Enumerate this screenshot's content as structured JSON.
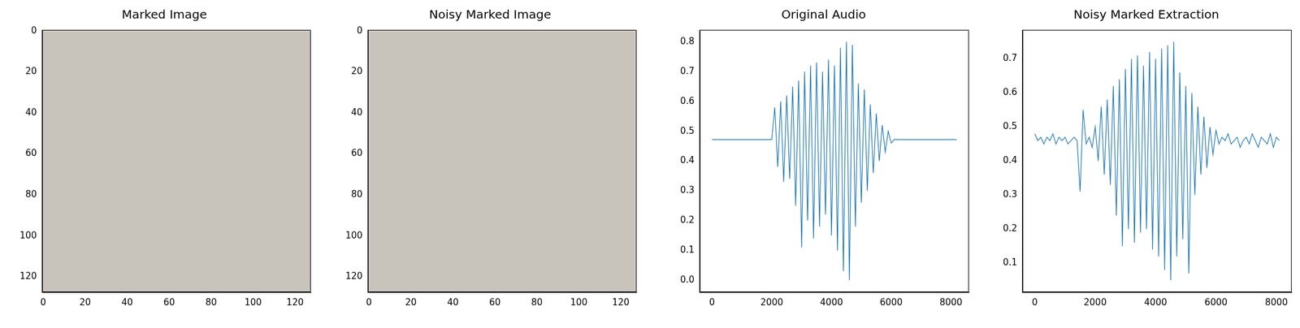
{
  "chart_data": [
    {
      "type": "image",
      "title": "Marked Image",
      "xlim": [
        -0.5,
        127.5
      ],
      "ylim": [
        127.5,
        -0.5
      ],
      "xticks": [
        0,
        20,
        40,
        60,
        80,
        100,
        120
      ],
      "yticks": [
        0,
        20,
        40,
        60,
        80,
        100,
        120
      ],
      "grid": false
    },
    {
      "type": "image",
      "title": "Noisy Marked Image",
      "xlim": [
        -0.5,
        127.5
      ],
      "ylim": [
        127.5,
        -0.5
      ],
      "xticks": [
        0,
        20,
        40,
        60,
        80,
        100,
        120
      ],
      "yticks": [
        0,
        20,
        40,
        60,
        80,
        100,
        120
      ],
      "grid": false
    },
    {
      "type": "line",
      "title": "Original Audio",
      "color": "#1f77b4",
      "grid": false,
      "x": [
        0,
        1000,
        2000,
        2100,
        2200,
        2300,
        2400,
        2500,
        2600,
        2700,
        2800,
        2900,
        3000,
        3100,
        3200,
        3300,
        3400,
        3500,
        3600,
        3700,
        3800,
        3900,
        4000,
        4100,
        4200,
        4300,
        4400,
        4500,
        4600,
        4700,
        4800,
        4900,
        5000,
        5100,
        5200,
        5300,
        5400,
        5500,
        5600,
        5700,
        5800,
        5900,
        6000,
        6100,
        7000,
        8191
      ],
      "values": [
        0.472,
        0.472,
        0.472,
        0.58,
        0.38,
        0.6,
        0.33,
        0.62,
        0.34,
        0.65,
        0.25,
        0.67,
        0.11,
        0.7,
        0.2,
        0.72,
        0.14,
        0.73,
        0.18,
        0.7,
        0.22,
        0.74,
        0.15,
        0.72,
        0.1,
        0.78,
        0.03,
        0.8,
        0.0,
        0.79,
        0.18,
        0.66,
        0.26,
        0.64,
        0.3,
        0.59,
        0.36,
        0.56,
        0.4,
        0.52,
        0.43,
        0.5,
        0.46,
        0.472,
        0.472,
        0.472
      ],
      "xlim": [
        -410,
        8601
      ],
      "xticks": [
        0,
        2000,
        4000,
        6000,
        8000
      ],
      "ylim": [
        -0.04,
        0.84
      ],
      "yticks": [
        {
          "value": 0.0,
          "label": "0.0"
        },
        0.1,
        0.2,
        0.3,
        0.4,
        0.5,
        0.6,
        0.7,
        0.8
      ]
    },
    {
      "type": "line",
      "title": "Noisy Marked Extraction",
      "color": "#1f77b4",
      "grid": false,
      "x": [
        0,
        100,
        200,
        300,
        400,
        500,
        600,
        700,
        800,
        900,
        1000,
        1100,
        1200,
        1300,
        1400,
        1500,
        1600,
        1700,
        1800,
        1900,
        2000,
        2100,
        2200,
        2300,
        2400,
        2500,
        2600,
        2700,
        2800,
        2900,
        3000,
        3100,
        3200,
        3300,
        3400,
        3500,
        3600,
        3700,
        3800,
        3900,
        4000,
        4100,
        4200,
        4300,
        4400,
        4500,
        4600,
        4700,
        4800,
        4900,
        5000,
        5100,
        5200,
        5300,
        5400,
        5500,
        5600,
        5700,
        5800,
        5900,
        6000,
        6100,
        6200,
        6300,
        6400,
        6500,
        6600,
        6700,
        6800,
        6900,
        7000,
        7100,
        7200,
        7300,
        7400,
        7500,
        7600,
        7700,
        7800,
        7900,
        8000,
        8100
      ],
      "values": [
        0.48,
        0.46,
        0.47,
        0.45,
        0.47,
        0.46,
        0.48,
        0.45,
        0.47,
        0.46,
        0.47,
        0.45,
        0.46,
        0.47,
        0.46,
        0.31,
        0.55,
        0.45,
        0.47,
        0.44,
        0.5,
        0.4,
        0.56,
        0.36,
        0.58,
        0.33,
        0.62,
        0.24,
        0.64,
        0.15,
        0.67,
        0.2,
        0.7,
        0.16,
        0.71,
        0.19,
        0.68,
        0.2,
        0.72,
        0.14,
        0.7,
        0.12,
        0.73,
        0.08,
        0.74,
        0.05,
        0.75,
        0.12,
        0.66,
        0.17,
        0.62,
        0.07,
        0.6,
        0.3,
        0.56,
        0.36,
        0.53,
        0.38,
        0.5,
        0.42,
        0.49,
        0.45,
        0.47,
        0.46,
        0.48,
        0.45,
        0.46,
        0.47,
        0.44,
        0.46,
        0.47,
        0.45,
        0.48,
        0.46,
        0.44,
        0.47,
        0.46,
        0.45,
        0.48,
        0.44,
        0.47,
        0.46
      ],
      "xlim": [
        -405,
        8505
      ],
      "xticks": [
        0,
        2000,
        4000,
        6000,
        8000
      ],
      "ylim": [
        0.015,
        0.785
      ],
      "yticks": [
        0.1,
        0.2,
        0.3,
        0.4,
        0.5,
        0.6,
        0.7
      ]
    }
  ]
}
